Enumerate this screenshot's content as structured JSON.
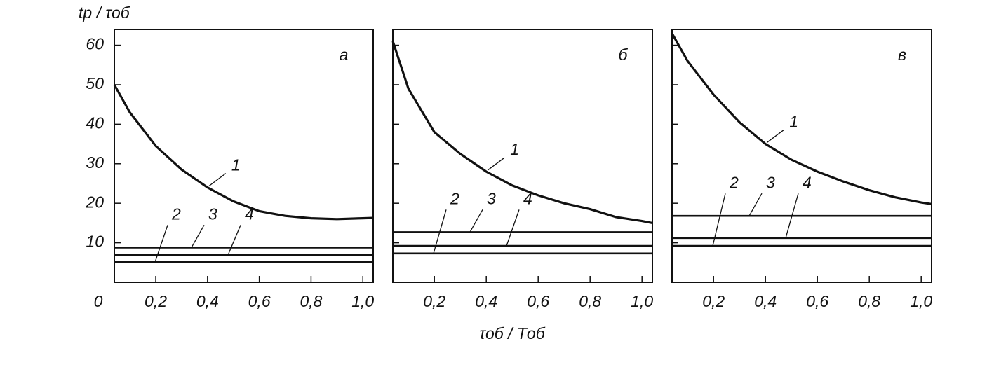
{
  "chart_data": [
    {
      "type": "line",
      "panel_label": "а",
      "y_label": "tр / τоб",
      "origin_label": "0",
      "show_ytick_labels": true,
      "x": [
        0.04,
        0.1,
        0.2,
        0.3,
        0.4,
        0.5,
        0.6,
        0.7,
        0.8,
        0.9,
        1.0,
        1.04
      ],
      "series": [
        {
          "name": "1",
          "color": "#111111",
          "values": [
            50,
            43,
            34.5,
            28.5,
            24,
            20.5,
            18,
            16.8,
            16.2,
            16,
            16.2,
            16.3
          ]
        },
        {
          "name": "2",
          "color": "#111111",
          "values": [
            5.1,
            5.1,
            5.1,
            5.1,
            5.1,
            5.1,
            5.1,
            5.1,
            5.1,
            5.1,
            5.1,
            5.1
          ]
        },
        {
          "name": "3",
          "color": "#111111",
          "values": [
            8.8,
            8.8,
            8.8,
            8.8,
            8.8,
            8.8,
            8.8,
            8.8,
            8.8,
            8.8,
            8.8,
            8.8
          ]
        },
        {
          "name": "4",
          "color": "#111111",
          "values": [
            6.9,
            6.9,
            6.9,
            6.9,
            6.9,
            6.9,
            6.9,
            6.9,
            6.9,
            6.9,
            6.9,
            6.9
          ]
        }
      ],
      "xlim": [
        0.04,
        1.04
      ],
      "ylim": [
        0,
        64
      ],
      "xticks": [
        {
          "value": 0.2,
          "label": "0,2"
        },
        {
          "value": 0.4,
          "label": "0,4"
        },
        {
          "value": 0.6,
          "label": "0,6"
        },
        {
          "value": 0.8,
          "label": "0,8"
        },
        {
          "value": 1.0,
          "label": "1,0"
        }
      ],
      "yticks": [
        10,
        20,
        30,
        40,
        50,
        60
      ]
    },
    {
      "type": "line",
      "panel_label": "б",
      "x_label": "τоб / Tоб",
      "show_ytick_labels": false,
      "x": [
        0.04,
        0.1,
        0.2,
        0.3,
        0.4,
        0.5,
        0.6,
        0.7,
        0.8,
        0.9,
        1.0,
        1.04
      ],
      "series": [
        {
          "name": "1",
          "color": "#111111",
          "values": [
            61,
            49,
            38,
            32.5,
            28,
            24.5,
            22,
            20,
            18.5,
            16.5,
            15.5,
            15
          ]
        },
        {
          "name": "2",
          "color": "#111111",
          "values": [
            7.3,
            7.3,
            7.3,
            7.3,
            7.3,
            7.3,
            7.3,
            7.3,
            7.3,
            7.3,
            7.3,
            7.3
          ]
        },
        {
          "name": "3",
          "color": "#111111",
          "values": [
            12.7,
            12.7,
            12.7,
            12.7,
            12.7,
            12.7,
            12.7,
            12.7,
            12.7,
            12.7,
            12.7,
            12.7
          ]
        },
        {
          "name": "4",
          "color": "#111111",
          "values": [
            9.2,
            9.2,
            9.2,
            9.2,
            9.2,
            9.2,
            9.2,
            9.2,
            9.2,
            9.2,
            9.2,
            9.2
          ]
        }
      ],
      "xlim": [
        0.04,
        1.04
      ],
      "ylim": [
        0,
        64
      ],
      "xticks": [
        {
          "value": 0.2,
          "label": "0,2"
        },
        {
          "value": 0.4,
          "label": "0,4"
        },
        {
          "value": 0.6,
          "label": "0,6"
        },
        {
          "value": 0.8,
          "label": "0,8"
        },
        {
          "value": 1.0,
          "label": "1,0"
        }
      ],
      "yticks": [
        10,
        20,
        30,
        40,
        50,
        60
      ]
    },
    {
      "type": "line",
      "panel_label": "в",
      "show_ytick_labels": false,
      "x": [
        0.04,
        0.1,
        0.2,
        0.3,
        0.4,
        0.5,
        0.6,
        0.7,
        0.8,
        0.9,
        1.0,
        1.04
      ],
      "series": [
        {
          "name": "1",
          "color": "#111111",
          "values": [
            63,
            56,
            47.5,
            40.5,
            35,
            31,
            28,
            25.5,
            23.3,
            21.5,
            20.2,
            19.8
          ]
        },
        {
          "name": "2",
          "color": "#111111",
          "values": [
            9.2,
            9.2,
            9.2,
            9.2,
            9.2,
            9.2,
            9.2,
            9.2,
            9.2,
            9.2,
            9.2,
            9.2
          ]
        },
        {
          "name": "3",
          "color": "#111111",
          "values": [
            16.8,
            16.8,
            16.8,
            16.8,
            16.8,
            16.8,
            16.8,
            16.8,
            16.8,
            16.8,
            16.8,
            16.8
          ]
        },
        {
          "name": "4",
          "color": "#111111",
          "values": [
            11.2,
            11.2,
            11.2,
            11.2,
            11.2,
            11.2,
            11.2,
            11.2,
            11.2,
            11.2,
            11.2,
            11.2
          ]
        }
      ],
      "xlim": [
        0.04,
        1.04
      ],
      "ylim": [
        0,
        64
      ],
      "xticks": [
        {
          "value": 0.2,
          "label": "0,2"
        },
        {
          "value": 0.4,
          "label": "0,4"
        },
        {
          "value": 0.6,
          "label": "0,6"
        },
        {
          "value": 0.8,
          "label": "0,8"
        },
        {
          "value": 1.0,
          "label": "1,0"
        }
      ],
      "yticks": [
        10,
        20,
        30,
        40,
        50,
        60
      ]
    }
  ]
}
